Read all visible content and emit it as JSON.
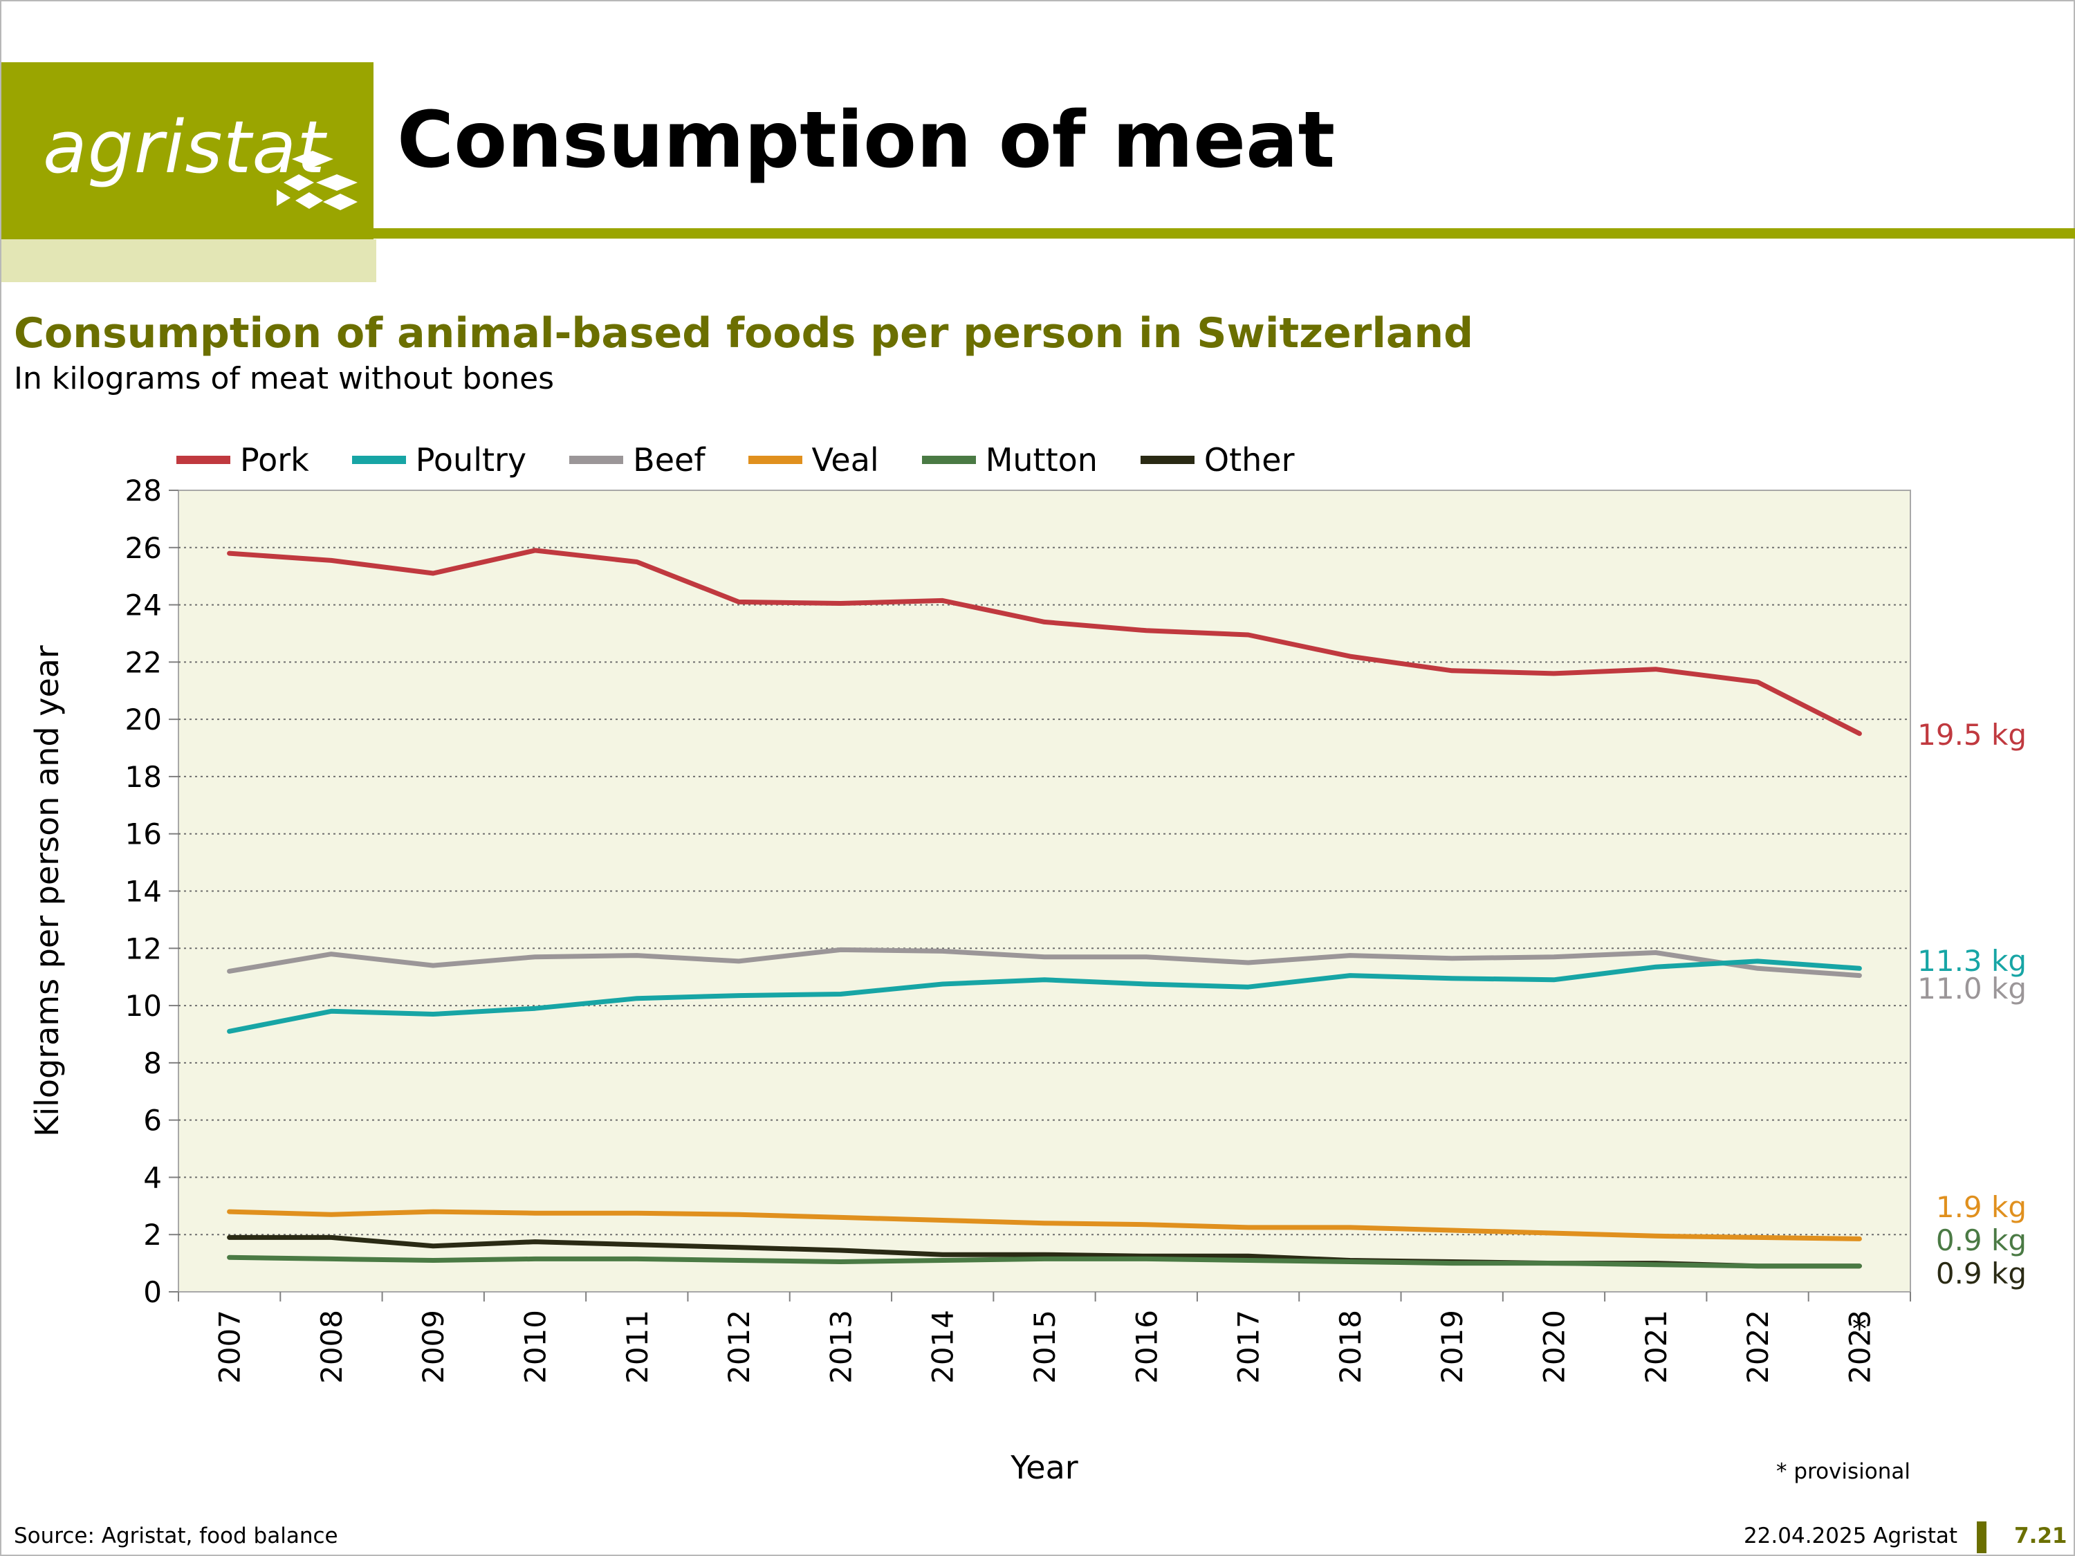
{
  "header": {
    "logo_text": "agristat",
    "page_title": "Consumption of meat"
  },
  "colors": {
    "brand_green": "#9aa500",
    "brand_green_light": "#e3e6b5",
    "title_green": "#6b6f00",
    "plot_background": "#f4f5e3"
  },
  "chart_data": {
    "type": "line",
    "title": "Consumption of animal-based foods per person in Switzerland",
    "subtitle": "In kilograms of meat without bones",
    "xlabel": "Year",
    "ylabel": "Kilograms per person and year",
    "x": [
      "2007",
      "2008",
      "2009",
      "2010",
      "2011",
      "2012",
      "2013",
      "2014",
      "2015",
      "2016",
      "2017",
      "2018",
      "2019",
      "2020",
      "2021",
      "2022",
      "2023"
    ],
    "x_marker_label": "*",
    "ylim": [
      0,
      28
    ],
    "yticks": [
      0,
      2,
      4,
      6,
      8,
      10,
      12,
      14,
      16,
      18,
      20,
      22,
      24,
      26,
      28
    ],
    "grid": "horizontal dotted",
    "legend_position": "top-left",
    "note": "* provisional",
    "series": [
      {
        "name": "Pork",
        "color": "#c0393f",
        "end_label": "19.5 kg",
        "values": [
          25.8,
          25.55,
          25.1,
          25.9,
          25.5,
          24.1,
          24.05,
          24.15,
          23.4,
          23.1,
          22.95,
          22.2,
          21.7,
          21.6,
          21.75,
          21.3,
          19.5
        ]
      },
      {
        "name": "Poultry",
        "color": "#17a5a5",
        "end_label": "11.3 kg",
        "values": [
          9.1,
          9.8,
          9.7,
          9.9,
          10.25,
          10.35,
          10.4,
          10.75,
          10.9,
          10.75,
          10.65,
          11.05,
          10.95,
          10.9,
          11.35,
          11.55,
          11.3
        ]
      },
      {
        "name": "Beef",
        "color": "#9b9698",
        "end_label": "11.0 kg",
        "values": [
          11.2,
          11.8,
          11.4,
          11.7,
          11.75,
          11.55,
          11.95,
          11.9,
          11.7,
          11.7,
          11.5,
          11.75,
          11.65,
          11.7,
          11.85,
          11.3,
          11.05
        ]
      },
      {
        "name": "Veal",
        "color": "#e0901e",
        "end_label": "1.9 kg",
        "values": [
          2.8,
          2.7,
          2.8,
          2.75,
          2.75,
          2.7,
          2.6,
          2.5,
          2.4,
          2.35,
          2.25,
          2.25,
          2.15,
          2.05,
          1.95,
          1.9,
          1.85
        ]
      },
      {
        "name": "Mutton",
        "color": "#4a7a44",
        "end_label": "0.9 kg",
        "values": [
          1.2,
          1.15,
          1.1,
          1.15,
          1.15,
          1.1,
          1.05,
          1.1,
          1.15,
          1.15,
          1.1,
          1.05,
          1.0,
          1.0,
          0.95,
          0.9,
          0.9
        ]
      },
      {
        "name": "Other",
        "color": "#2a2a14",
        "end_label": "0.9 kg",
        "values": [
          1.9,
          1.9,
          1.6,
          1.75,
          1.65,
          1.55,
          1.45,
          1.3,
          1.3,
          1.25,
          1.25,
          1.1,
          1.05,
          1.0,
          1.0,
          0.9,
          0.9
        ]
      }
    ]
  },
  "footer": {
    "source": "Source: Agristat, food balance",
    "date": "22.04.2025 Agristat",
    "page_number": "7.21"
  }
}
